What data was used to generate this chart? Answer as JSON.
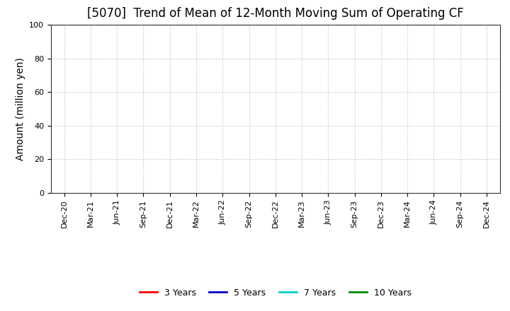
{
  "title": "[5070]  Trend of Mean of 12-Month Moving Sum of Operating CF",
  "ylabel": "Amount (million yen)",
  "ylim": [
    0,
    100
  ],
  "yticks": [
    0,
    20,
    40,
    60,
    80,
    100
  ],
  "background_color": "#ffffff",
  "grid_color": "#bbbbbb",
  "x_labels": [
    "Dec-20",
    "Mar-21",
    "Jun-21",
    "Sep-21",
    "Dec-21",
    "Mar-22",
    "Jun-22",
    "Sep-22",
    "Dec-22",
    "Mar-23",
    "Jun-23",
    "Sep-23",
    "Dec-23",
    "Mar-24",
    "Jun-24",
    "Sep-24",
    "Dec-24"
  ],
  "legend_entries": [
    {
      "label": "3 Years",
      "color": "#ff0000"
    },
    {
      "label": "5 Years",
      "color": "#0000cc"
    },
    {
      "label": "7 Years",
      "color": "#00cccc"
    },
    {
      "label": "10 Years",
      "color": "#008800"
    }
  ],
  "title_fontsize": 12,
  "axis_label_fontsize": 10,
  "tick_fontsize": 8,
  "legend_fontsize": 9
}
